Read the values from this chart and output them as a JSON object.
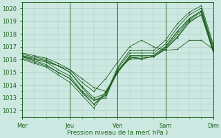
{
  "xlabel": "Pression niveau de la mer( hPa )",
  "ylim": [
    1011.5,
    1020.5
  ],
  "xlim": [
    0,
    96
  ],
  "yticks": [
    1012,
    1013,
    1014,
    1015,
    1016,
    1017,
    1018,
    1019,
    1020
  ],
  "xtick_positions": [
    0,
    24,
    48,
    72,
    96
  ],
  "xtick_labels": [
    "Mer",
    "Jeu",
    "Ven",
    "Sam",
    "Dim"
  ],
  "background_color": "#cce8e0",
  "grid_color": "#aaccC4",
  "line_color": "#1a5c1a",
  "axis_color": "#226622",
  "lines": [
    {
      "x": [
        0,
        6,
        12,
        18,
        24,
        30,
        36,
        42,
        48,
        54,
        60,
        66,
        72,
        78,
        84,
        90,
        96
      ],
      "y": [
        1016.2,
        1016.0,
        1015.8,
        1015.5,
        1015.2,
        1014.5,
        1013.8,
        1013.5,
        1015.0,
        1016.2,
        1016.0,
        1016.3,
        1017.0,
        1018.2,
        1019.2,
        1019.8,
        1016.8
      ]
    },
    {
      "x": [
        0,
        6,
        12,
        18,
        24,
        30,
        36,
        42,
        48,
        54,
        60,
        66,
        72,
        78,
        84,
        90,
        96
      ],
      "y": [
        1016.1,
        1015.8,
        1015.5,
        1015.0,
        1014.5,
        1013.5,
        1012.8,
        1013.2,
        1015.2,
        1016.0,
        1016.1,
        1016.2,
        1016.8,
        1017.8,
        1019.0,
        1019.5,
        1016.6
      ]
    },
    {
      "x": [
        0,
        6,
        12,
        18,
        24,
        30,
        36,
        42,
        48,
        54,
        60,
        66,
        72,
        78,
        84,
        90,
        96
      ],
      "y": [
        1016.3,
        1016.1,
        1015.9,
        1015.5,
        1015.0,
        1013.8,
        1012.8,
        1013.0,
        1015.3,
        1016.5,
        1016.5,
        1016.5,
        1017.2,
        1018.5,
        1019.5,
        1020.0,
        1017.0
      ]
    },
    {
      "x": [
        0,
        6,
        12,
        18,
        24,
        30,
        36,
        42,
        48,
        54,
        60,
        66,
        72,
        78,
        84,
        90,
        96
      ],
      "y": [
        1016.0,
        1015.7,
        1015.4,
        1014.8,
        1014.2,
        1013.2,
        1012.2,
        1013.5,
        1015.0,
        1016.1,
        1016.2,
        1016.2,
        1016.8,
        1017.7,
        1018.9,
        1019.5,
        1016.6
      ]
    },
    {
      "x": [
        0,
        6,
        12,
        18,
        24,
        30,
        36,
        42,
        48,
        54,
        60,
        66,
        72,
        78,
        84,
        90,
        96
      ],
      "y": [
        1016.4,
        1016.2,
        1016.0,
        1015.5,
        1015.0,
        1013.9,
        1013.0,
        1013.3,
        1015.4,
        1016.7,
        1016.7,
        1016.7,
        1017.5,
        1018.8,
        1019.7,
        1020.2,
        1017.2
      ]
    },
    {
      "x": [
        0,
        6,
        12,
        18,
        24,
        30,
        36,
        42,
        48,
        54,
        60,
        66,
        72,
        78,
        84,
        90,
        96
      ],
      "y": [
        1016.3,
        1016.0,
        1015.8,
        1015.2,
        1014.7,
        1013.5,
        1012.5,
        1013.4,
        1015.1,
        1016.3,
        1016.3,
        1016.3,
        1017.0,
        1018.2,
        1019.2,
        1019.8,
        1016.8
      ]
    },
    {
      "x": [
        0,
        6,
        12,
        18,
        24,
        30,
        36,
        42,
        48,
        54,
        60,
        66,
        72,
        78,
        84,
        90,
        96
      ],
      "y": [
        1016.5,
        1016.3,
        1016.1,
        1015.7,
        1015.2,
        1014.2,
        1013.5,
        1014.5,
        1015.8,
        1017.0,
        1017.5,
        1017.0,
        1016.7,
        1016.8,
        1017.5,
        1017.5,
        1016.8
      ]
    },
    {
      "x": [
        0,
        6,
        12,
        18,
        24,
        30,
        36,
        42,
        48,
        54,
        60,
        66,
        72,
        78,
        84,
        90,
        96
      ],
      "y": [
        1016.2,
        1015.9,
        1015.6,
        1015.0,
        1014.5,
        1013.4,
        1012.5,
        1013.2,
        1015.0,
        1016.2,
        1016.2,
        1016.2,
        1016.9,
        1018.0,
        1019.1,
        1019.7,
        1016.7
      ]
    }
  ],
  "figsize": [
    3.2,
    2.0
  ],
  "dpi": 100
}
